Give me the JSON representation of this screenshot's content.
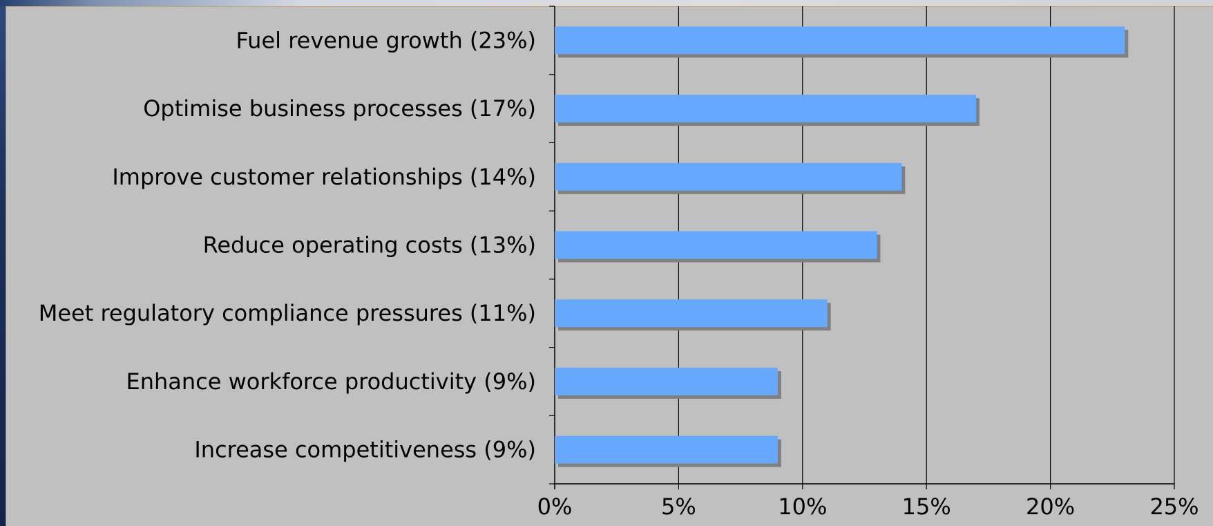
{
  "colors": {
    "bar_fill": "#66a8ff",
    "bar_shadow": "#808080",
    "plot_background": "#c0c0c0",
    "gridline": "#000000",
    "text": "#000000"
  },
  "chart_data": {
    "type": "bar",
    "orientation": "horizontal",
    "title": "",
    "xlabel": "",
    "ylabel": "",
    "categories": [
      "Fuel revenue growth (23%)",
      "Optimise business processes (17%)",
      "Improve customer relationships (14%)",
      "Reduce operating costs (13%)",
      "Meet regulatory compliance pressures (11%)",
      "Enhance workforce productivity (9%)",
      "Increase competitiveness (9%)"
    ],
    "values": [
      23,
      17,
      14,
      13,
      11,
      9,
      9
    ],
    "value_unit": "%",
    "xlim": [
      0,
      25
    ],
    "xticks": [
      0,
      5,
      10,
      15,
      20,
      25
    ],
    "xtick_labels": [
      "0%",
      "5%",
      "10%",
      "15%",
      "20%",
      "25%"
    ],
    "grid": "vertical major gridlines",
    "legend": "none"
  }
}
